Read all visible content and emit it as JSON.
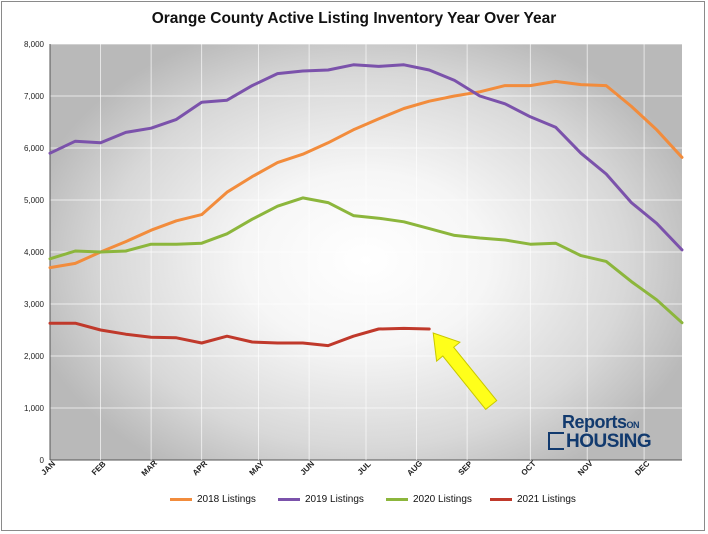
{
  "chart_data": {
    "type": "line",
    "title": "Orange County Active Listing Inventory Year Over Year",
    "xlabel": "",
    "ylabel": "",
    "ylim": [
      0,
      8000
    ],
    "y_ticks": [
      "0",
      "1,000",
      "2,000",
      "3,000",
      "4,000",
      "5,000",
      "6,000",
      "7,000",
      "8,000"
    ],
    "x_ticks": [
      "JAN",
      "FEB",
      "MAR",
      "APR",
      "MAY",
      "JUN",
      "JUL",
      "AUG",
      "SEP",
      "OCT",
      "NOV",
      "DEC"
    ],
    "x_tick_positions": [
      0,
      4,
      8,
      12,
      16.5,
      20.5,
      25,
      29,
      33,
      38,
      42.5,
      47
    ],
    "x_range": [
      0,
      50
    ],
    "grid": true,
    "legend_position": "bottom",
    "annotation": "yellow arrow pointing to the end of the 2021 Listings line",
    "series": [
      {
        "name": "2018 Listings",
        "color": "#f28c3c",
        "x": [
          0,
          2,
          4,
          6,
          8,
          10,
          12,
          14,
          16,
          18,
          20,
          22,
          24,
          26,
          28,
          30,
          32,
          34,
          36,
          38,
          40,
          42,
          44,
          46,
          48,
          50
        ],
        "values": [
          3700,
          3780,
          4000,
          4200,
          4420,
          4600,
          4720,
          5150,
          5450,
          5720,
          5880,
          6100,
          6350,
          6560,
          6760,
          6900,
          7000,
          7080,
          7200,
          7200,
          7280,
          7220,
          7200,
          6800,
          6350,
          5820
        ]
      },
      {
        "name": "2019 Listings",
        "color": "#7b52ab",
        "x": [
          0,
          2,
          4,
          6,
          8,
          10,
          12,
          14,
          16,
          18,
          20,
          22,
          24,
          26,
          28,
          30,
          32,
          34,
          36,
          38,
          40,
          42,
          44,
          46,
          48,
          50
        ],
        "values": [
          5900,
          6130,
          6100,
          6300,
          6380,
          6550,
          6880,
          6920,
          7200,
          7430,
          7480,
          7500,
          7600,
          7570,
          7600,
          7500,
          7300,
          7000,
          6850,
          6600,
          6400,
          5900,
          5500,
          4950,
          4550,
          4040
        ]
      },
      {
        "name": "2020 Listings",
        "color": "#8cb63c",
        "x": [
          0,
          2,
          4,
          6,
          8,
          10,
          12,
          14,
          16,
          18,
          20,
          22,
          24,
          26,
          28,
          30,
          32,
          34,
          36,
          38,
          40,
          42,
          44,
          46,
          48,
          50
        ],
        "values": [
          3870,
          4020,
          4000,
          4020,
          4150,
          4150,
          4170,
          4350,
          4630,
          4880,
          5040,
          4950,
          4700,
          4650,
          4580,
          4450,
          4320,
          4270,
          4230,
          4150,
          4170,
          3930,
          3820,
          3430,
          3080,
          2640
        ]
      },
      {
        "name": "2021 Listings",
        "color": "#c0392b",
        "x": [
          0,
          2,
          4,
          6,
          8,
          10,
          12,
          14,
          16,
          18,
          20,
          22,
          24,
          26,
          28,
          30
        ],
        "values": [
          2630,
          2630,
          2500,
          2420,
          2360,
          2350,
          2250,
          2380,
          2270,
          2250,
          2250,
          2200,
          2380,
          2520,
          2530,
          2520
        ]
      }
    ]
  },
  "logo": {
    "line1": "Reports",
    "line1_small": "ON",
    "line2": "HOUSING"
  }
}
